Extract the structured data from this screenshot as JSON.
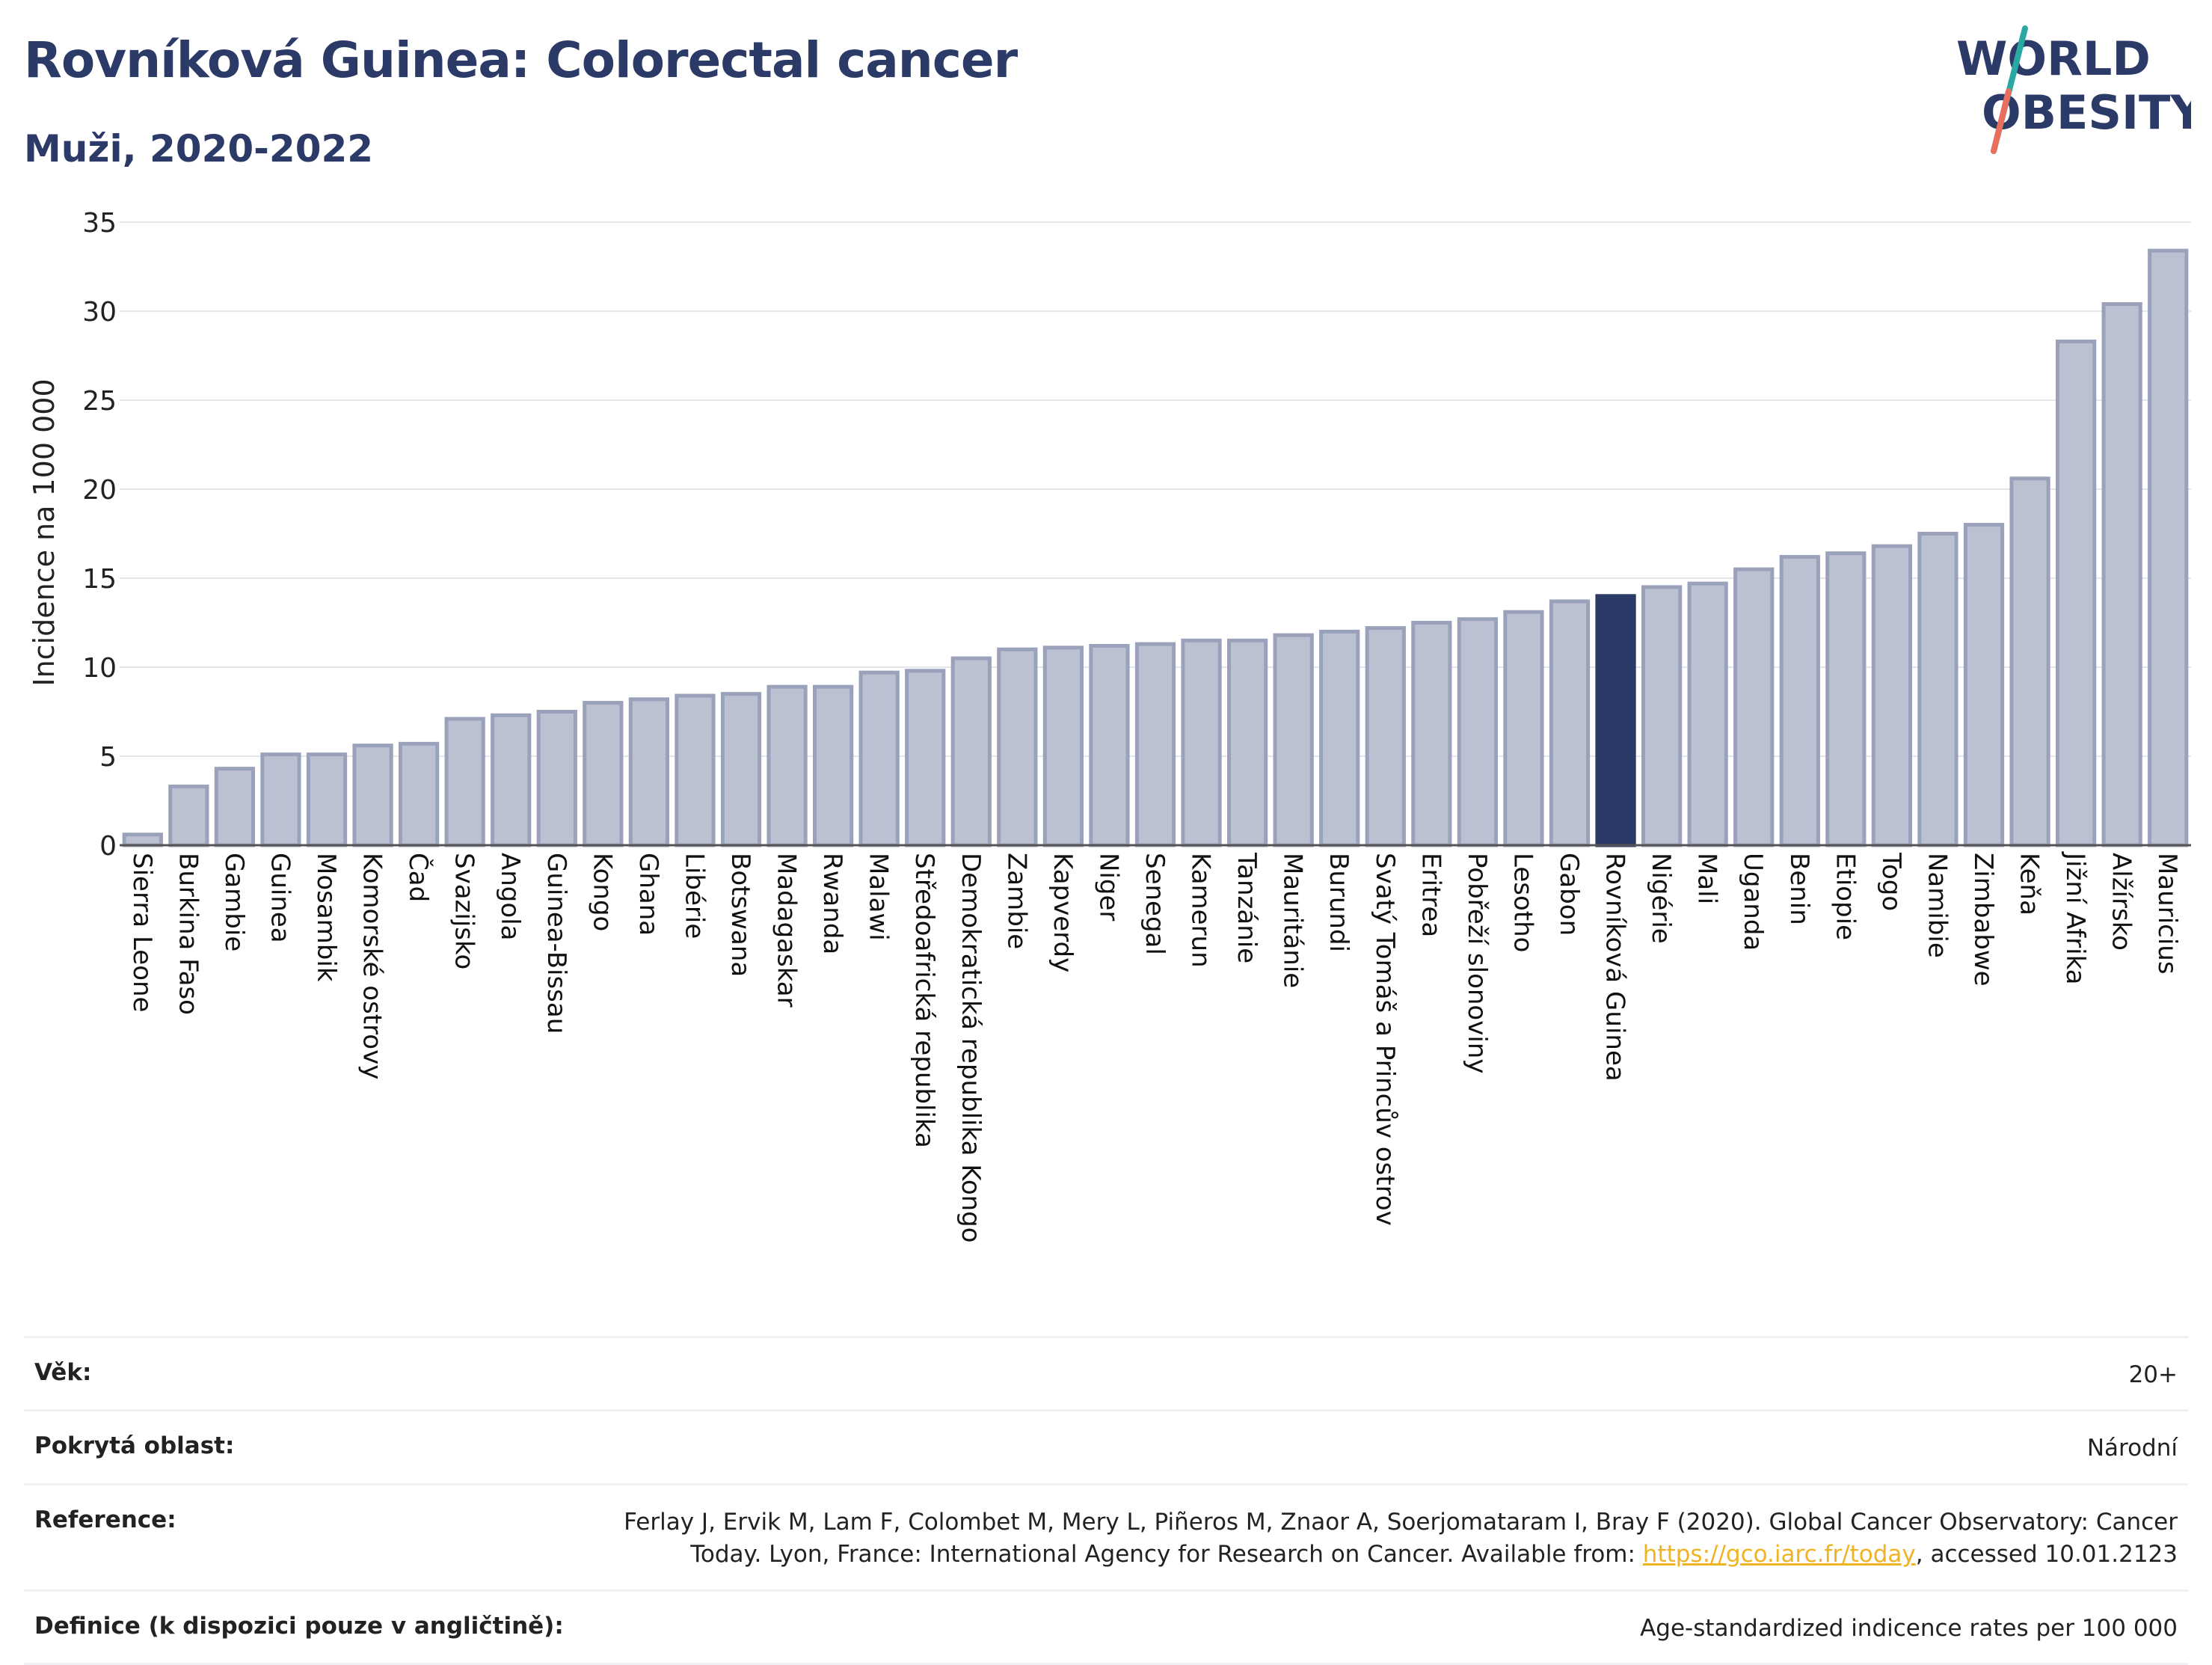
{
  "header": {
    "title": "Rovníková Guinea: Colorectal cancer",
    "subtitle": "Muži, 2020-2022",
    "logo_line1": "WORLD",
    "logo_line2": "OBESITY"
  },
  "chart_data": {
    "type": "bar",
    "title": "Rovníková Guinea: Colorectal cancer",
    "subtitle": "Muži, 2020-2022",
    "ylabel": "Incidence na 100 000",
    "xlabel": "",
    "ylim": [
      0,
      35
    ],
    "yticks": [
      0,
      5,
      10,
      15,
      20,
      25,
      30,
      35
    ],
    "grid": true,
    "highlight": "Rovníková Guinea",
    "colors": {
      "bar": "#bcc1d1",
      "bar_edge": "#9aa1bb",
      "highlight": "#2b3a67"
    },
    "categories": [
      "Sierra Leone",
      "Burkina Faso",
      "Gambie",
      "Guinea",
      "Mosambik",
      "Komorské ostrovy",
      "Čad",
      "Svazijsko",
      "Angola",
      "Guinea-Bissau",
      "Kongo",
      "Ghana",
      "Libérie",
      "Botswana",
      "Madagaskar",
      "Rwanda",
      "Malawi",
      "Středoafrická republika",
      "Demokratická republika Kongo",
      "Zambie",
      "Kapverdy",
      "Niger",
      "Senegal",
      "Kamerun",
      "Tanzánie",
      "Mauritánie",
      "Burundi",
      "Svatý Tomáš a Princův ostrov",
      "Eritrea",
      "Pobřeží slonoviny",
      "Lesotho",
      "Gabon",
      "Rovníková Guinea",
      "Nigérie",
      "Mali",
      "Uganda",
      "Benin",
      "Etiopie",
      "Togo",
      "Namibie",
      "Zimbabwe",
      "Keňa",
      "Jižní Afrika",
      "Alžírsko",
      "Mauricius"
    ],
    "values": [
      0.6,
      3.3,
      4.3,
      5.1,
      5.1,
      5.6,
      5.7,
      7.1,
      7.3,
      7.5,
      8.0,
      8.2,
      8.4,
      8.5,
      8.9,
      8.9,
      9.7,
      9.8,
      10.5,
      11.0,
      11.1,
      11.2,
      11.3,
      11.5,
      11.5,
      11.8,
      12.0,
      12.2,
      12.5,
      12.7,
      13.1,
      13.7,
      14.0,
      14.5,
      14.7,
      15.5,
      16.2,
      16.4,
      16.8,
      17.5,
      18.0,
      20.6,
      28.3,
      30.4,
      33.4
    ]
  },
  "info": {
    "rows": [
      {
        "label": "Věk:",
        "value": "20+"
      },
      {
        "label": "Pokrytá oblast:",
        "value": "Národní"
      },
      {
        "label": "Definice (k dispozici pouze v angličtině):",
        "value": "Age-standardized indicence rates per 100 000"
      }
    ],
    "reference": {
      "label": "Reference:",
      "text_before": "Ferlay J, Ervik M, Lam F, Colombet M, Mery L, Piñeros M, Znaor A, Soerjomataram I, Bray F (2020). Global Cancer Observatory: Cancer Today. Lyon, France: International Agency for Research on Cancer. Available from: ",
      "link": "https://gco.iarc.fr/today",
      "text_after": ", accessed 10.01.2123"
    }
  }
}
